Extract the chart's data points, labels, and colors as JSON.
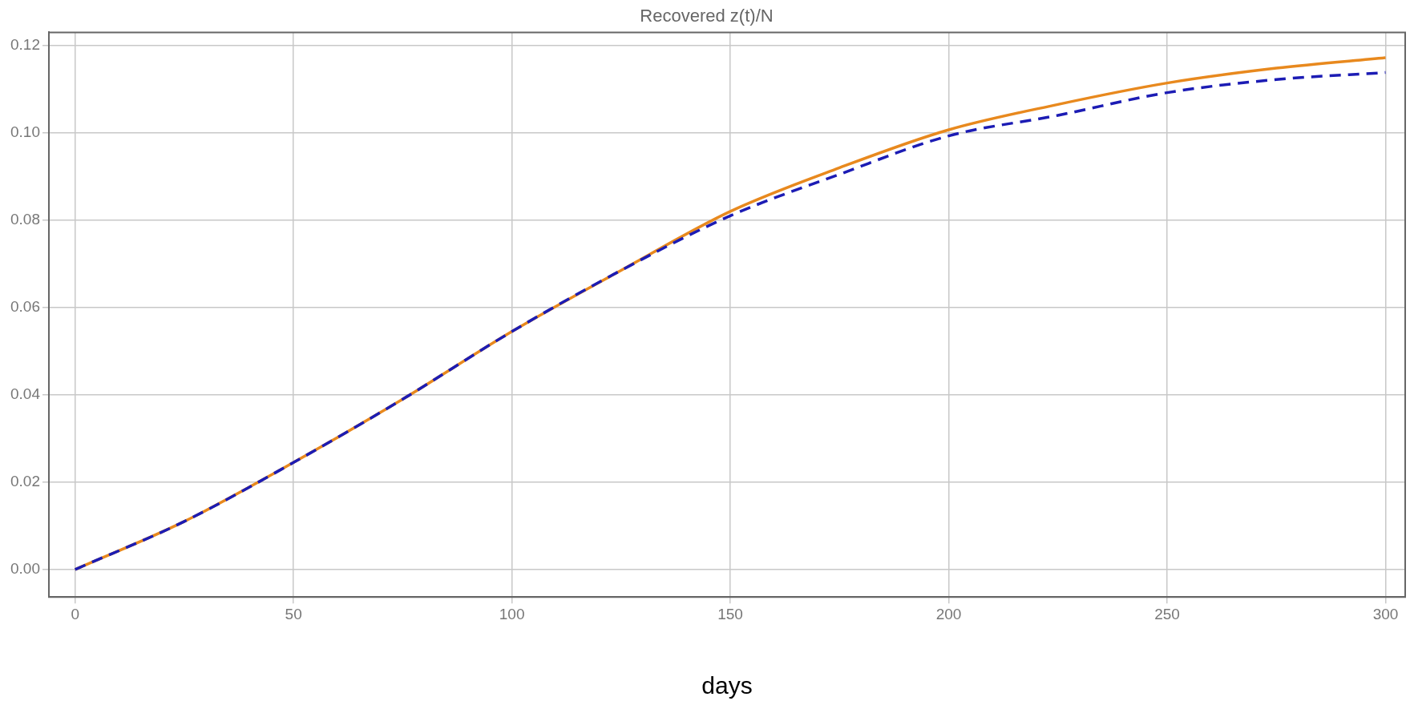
{
  "chart_data": {
    "type": "line",
    "title": "Recovered z(t)/N",
    "xlabel": "days",
    "x": [
      0,
      25,
      50,
      75,
      100,
      125,
      150,
      175,
      200,
      225,
      250,
      275,
      300
    ],
    "series": [
      {
        "color": "#e8891e",
        "line_style": "solid",
        "values": [
          0,
          0.011,
          0.0245,
          0.039,
          0.0545,
          0.0685,
          0.082,
          0.092,
          0.1007,
          0.1065,
          0.1114,
          0.1148,
          0.1172
        ]
      },
      {
        "color": "#1c1cb4",
        "line_style": "dashed",
        "values": [
          0,
          0.011,
          0.0245,
          0.039,
          0.0545,
          0.0685,
          0.081,
          0.0905,
          0.0993,
          0.104,
          0.1092,
          0.1122,
          0.1138
        ]
      }
    ],
    "xlim": [
      -6,
      304.5
    ],
    "ylim": [
      -0.0063,
      0.123
    ],
    "xticks": [
      0,
      50,
      100,
      150,
      200,
      250,
      300
    ],
    "yticks": [
      {
        "value": 0,
        "label": "0.00"
      },
      {
        "value": 0.02,
        "label": "0.02"
      },
      {
        "value": 0.04,
        "label": "0.04"
      },
      {
        "value": 0.06,
        "label": "0.06"
      },
      {
        "value": 0.08,
        "label": "0.08"
      },
      {
        "value": 0.1,
        "label": "0.10"
      },
      {
        "value": 0.12,
        "label": "0.12"
      }
    ],
    "grid": true,
    "marker": "none"
  }
}
